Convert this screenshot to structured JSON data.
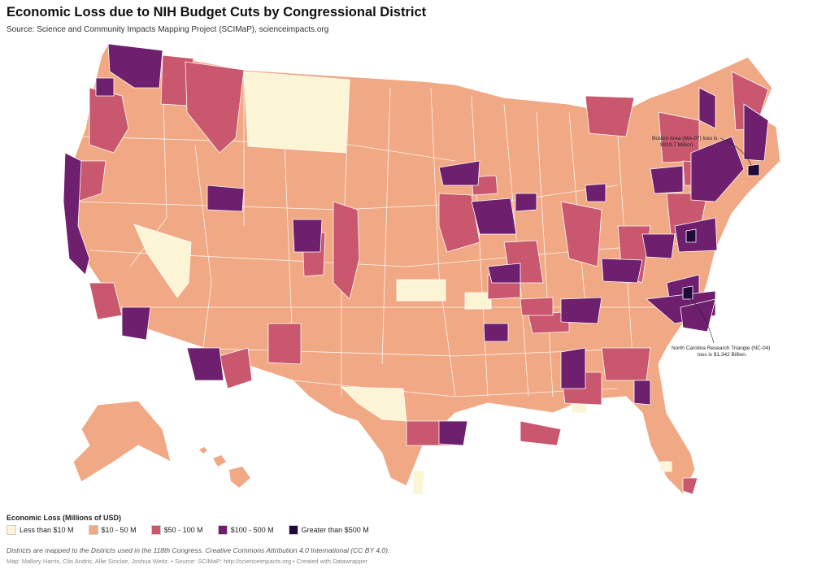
{
  "title": "Economic Loss due to NIH Budget Cuts by Congressional District",
  "subtitle": "Source: Science and Community Impacts Mapping Project (SCIMaP), scienceimpacts.org",
  "legend": {
    "title": "Economic Loss (Millions of USD)",
    "items": [
      {
        "label": "Less than $10 M",
        "color": "#fcf5d5"
      },
      {
        "label": "$10 - 50 M",
        "color": "#f1a884"
      },
      {
        "label": "$50 - 100 M",
        "color": "#c9576e"
      },
      {
        "label": "$100 - 500 M",
        "color": "#6e1f6e"
      },
      {
        "label": "Greater than $500 M",
        "color": "#1f0a3a"
      }
    ]
  },
  "annotations": {
    "boston_line1": "Boston Area (MA-07) loss is",
    "boston_line2": "$919.7 Million.",
    "nc_line1": "North Carolina Research Triangle (NC-04)",
    "nc_line2": "loss is $1.342 Billion."
  },
  "note": "Districts are mapped to the Districts used in the 118th Congress. Creative Commons Attribution 4.0 International (CC BY 4.0).",
  "credits": "Map: Mallory Harris, Clio Andris, Allie Sinclair, Joshua Weitz. • Source: SCIMaP: http://scienceimpacts.org • Created with Datawrapper",
  "colors": {
    "lt10": "#fcf5d5",
    "r10_50": "#f1a884",
    "r50_100": "#c9576e",
    "r100_500": "#6e1f6e",
    "gt500": "#1f0a3a",
    "border": "#ffffff"
  }
}
